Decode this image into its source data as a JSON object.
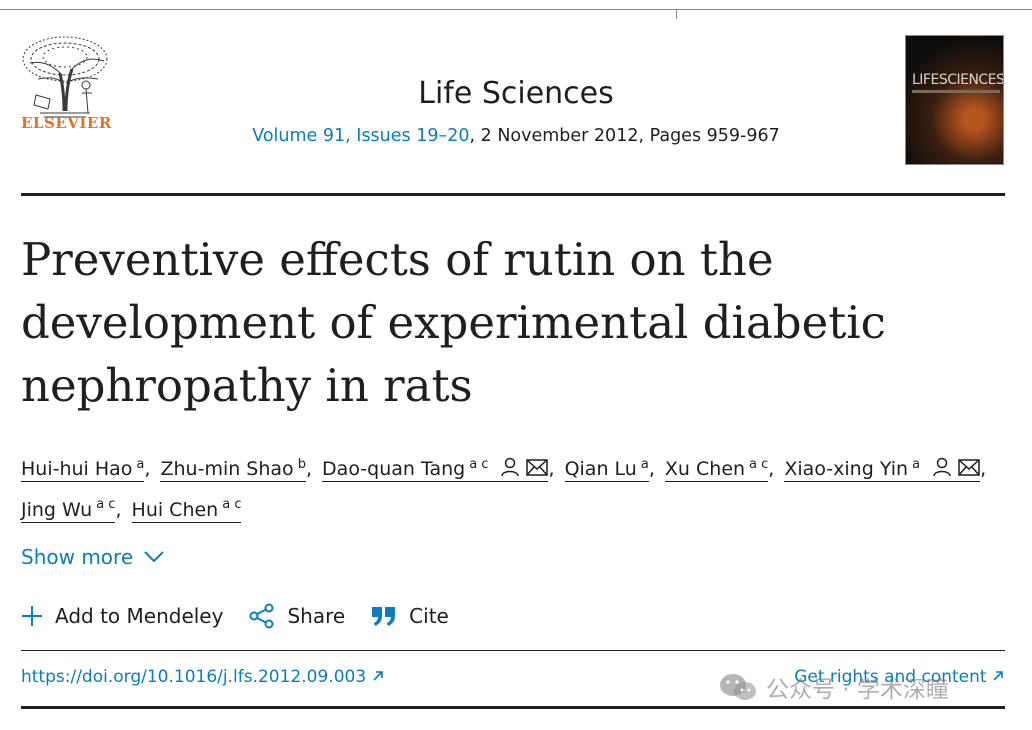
{
  "publisher": {
    "name": "ELSEVIER"
  },
  "journal": {
    "name": "Life Sciences",
    "issue_link": "Volume 91, Issues 19–20",
    "issue_rest": ", 2 November 2012, Pages 959-967",
    "cover_title": "LIFESCIENCES"
  },
  "article": {
    "title": "Preventive effects of rutin on the development of experimental diabetic nephropathy in rats"
  },
  "authors": [
    {
      "name": "Hui-hui Hao",
      "aff": "a"
    },
    {
      "name": "Zhu-min Shao",
      "aff": "b"
    },
    {
      "name": "Dao-quan Tang",
      "aff": "a c"
    },
    {
      "name": "Qian Lu",
      "aff": "a"
    },
    {
      "name": "Xu Chen",
      "aff": "a c"
    },
    {
      "name": "Xiao-xing Yin",
      "aff": "a"
    },
    {
      "name": "Jing Wu",
      "aff": "a c"
    },
    {
      "name": "Hui Chen",
      "aff": "a c"
    }
  ],
  "show_more": "Show more",
  "actions": {
    "mendeley": "Add to Mendeley",
    "share": "Share",
    "cite": "Cite"
  },
  "links": {
    "doi": "https://doi.org/10.1016/j.lfs.2012.09.003",
    "rights": "Get rights and content"
  },
  "watermark": "公众号 · 学术深瞳",
  "colors": {
    "link": "#0c7dbb",
    "publisher": "#e9711c",
    "text": "#1f1f1f"
  }
}
